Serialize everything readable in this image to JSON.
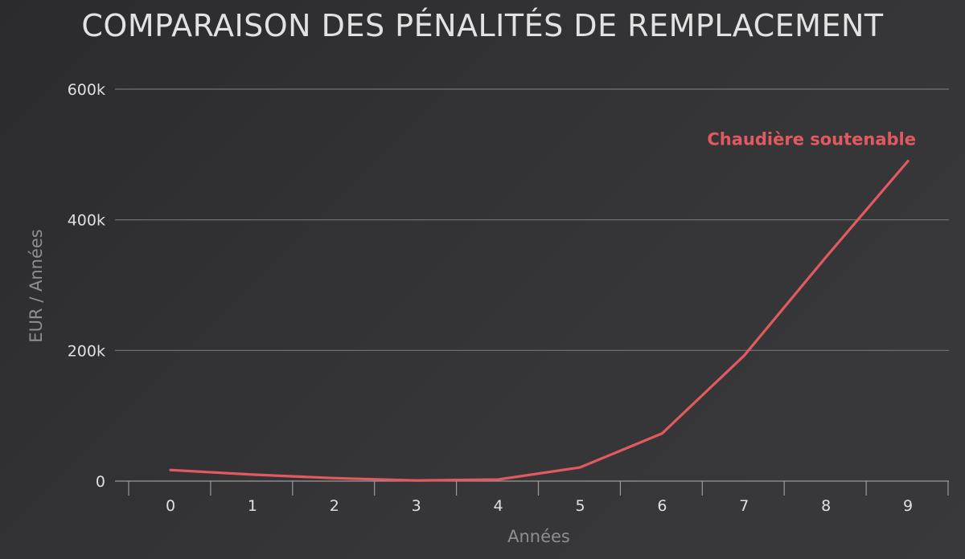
{
  "chart_data": {
    "type": "line",
    "title": "COMPARAISON DES PÉNALITÉS DE REMPLACEMENT",
    "xlabel": "Années",
    "ylabel": "EUR / Années",
    "x": [
      0,
      1,
      2,
      3,
      4,
      5,
      6,
      7,
      8,
      9
    ],
    "ylim": [
      0,
      600000
    ],
    "yticks": [
      0,
      200000,
      400000,
      600000
    ],
    "ytick_labels": [
      "0",
      "200k",
      "400k",
      "600k"
    ],
    "grid": true,
    "series": [
      {
        "name": "Chaudière soutenable",
        "color": "#e05a5f",
        "values": [
          17000,
          10000,
          4500,
          1000,
          2500,
          21000,
          73000,
          192000,
          343000,
          490000
        ]
      }
    ]
  }
}
